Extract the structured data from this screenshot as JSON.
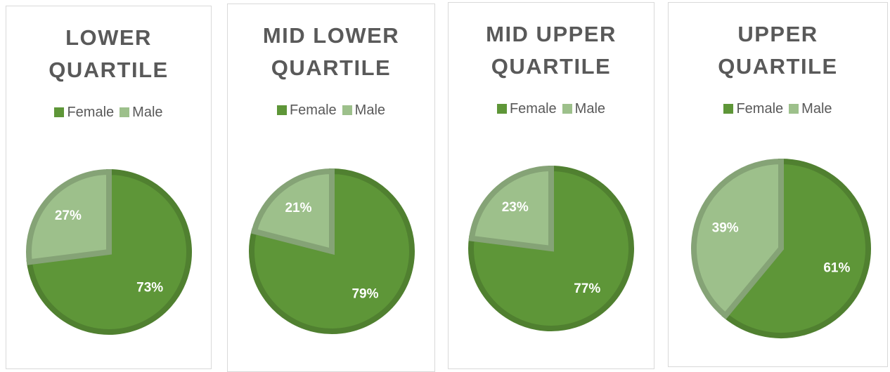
{
  "chart_data": [
    {
      "type": "pie",
      "title": "LOWER QUARTILE",
      "categories": [
        "Female",
        "Male"
      ],
      "values": [
        73,
        27
      ],
      "value_labels": [
        "73%",
        "27%"
      ],
      "colors": [
        "#5e9638",
        "#9dc08b"
      ],
      "legend": "top"
    },
    {
      "type": "pie",
      "title": "MID LOWER QUARTILE",
      "categories": [
        "Female",
        "Male"
      ],
      "values": [
        79,
        21
      ],
      "value_labels": [
        "79%",
        "21%"
      ],
      "colors": [
        "#5e9638",
        "#9dc08b"
      ],
      "legend": "top"
    },
    {
      "type": "pie",
      "title": "MID UPPER QUARTILE",
      "categories": [
        "Female",
        "Male"
      ],
      "values": [
        77,
        23
      ],
      "value_labels": [
        "77%",
        "23%"
      ],
      "colors": [
        "#5e9638",
        "#9dc08b"
      ],
      "legend": "top"
    },
    {
      "type": "pie",
      "title": "UPPER QUARTILE",
      "categories": [
        "Female",
        "Male"
      ],
      "values": [
        61,
        39
      ],
      "value_labels": [
        "61%",
        "39%"
      ],
      "colors": [
        "#5e9638",
        "#9dc08b"
      ],
      "legend": "top"
    }
  ]
}
